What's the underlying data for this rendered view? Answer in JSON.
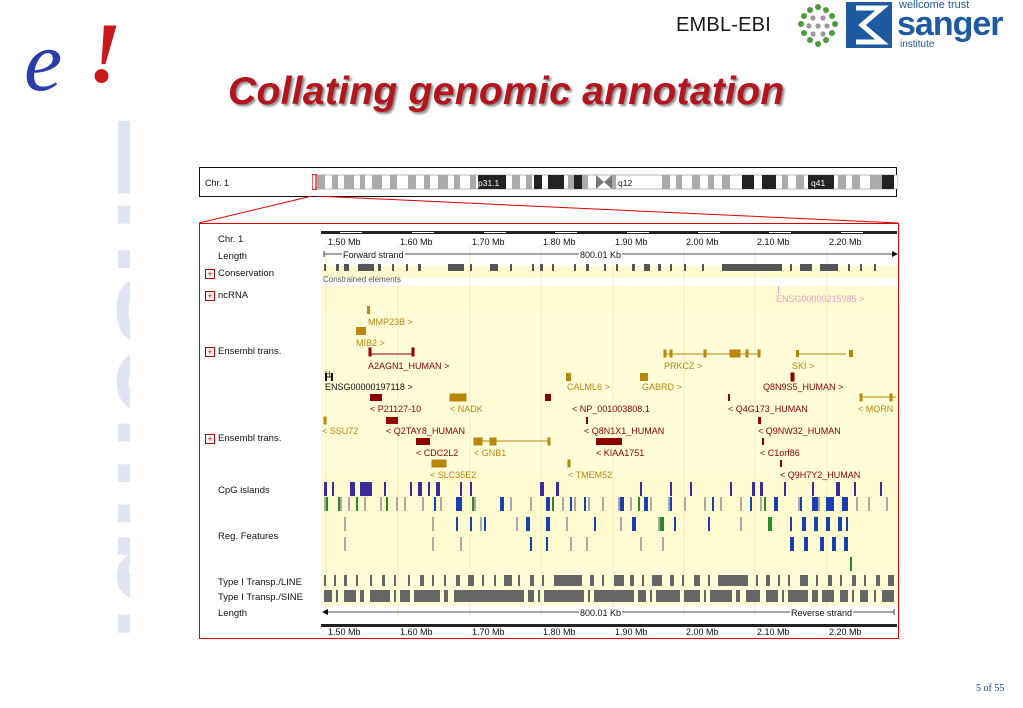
{
  "slide": {
    "title": "Collating genomic annotation",
    "page_number": "5 of 55"
  },
  "branding": {
    "ensembl_logo": "e!",
    "ensembl_word": "Ensembl",
    "embl_ebi": "EMBL-EBI",
    "sanger_top": "wellcome trust",
    "sanger_main": "sanger",
    "sanger_sub": "institute"
  },
  "chromosome_overview": {
    "label": "Chr. 1",
    "bands": [
      "p31.1",
      "q12",
      "q41"
    ]
  },
  "detail": {
    "tracks": {
      "chr": "Chr. 1",
      "length": "Length",
      "conservation": "Conservation",
      "ncrna": "ncRNA",
      "ensembl_trans_fwd": "Ensembl trans.",
      "ensembl_trans_rev": "Ensembl trans.",
      "cpg": "CpG islands",
      "reg": "Reg. Features",
      "line": "Type I Transp./LINE",
      "sine": "Type I Transp./SINE",
      "length_bottom": "Length"
    },
    "scale_ticks": [
      "1.50 Mb",
      "1.60 Mb",
      "1.70 Mb",
      "1.80 Mb",
      "1.90 Mb",
      "2.00 Mb",
      "2.10 Mb",
      "2.20 Mb"
    ],
    "forward_strand": "Forward strand",
    "reverse_strand": "Reverse strand",
    "length_value": "800.01 Kb",
    "constrained": "Constrained elements",
    "ncrna_gene": "ENSG00000215985 >",
    "genes": {
      "mmp23b": "MMP23B >",
      "mib2": "MIB2 >",
      "a2agn1": "A2AGN1_HUMAN >",
      "ensg197118": "ENSG00000197118 >",
      "prkcz": "PRKCZ >",
      "ski": "SKI >",
      "calml6": "CALML6 >",
      "gabrd": "GABRD >",
      "q8n9s5": "Q8N9S5_HUMAN >",
      "p21127": "< P21127-10",
      "nadk": "< NADK",
      "np001003808": "< NP_001003808.1",
      "q4g173": "< Q4G173_HUMAN",
      "morn": "< MORN",
      "ssu72": "< SSU72",
      "q2tay8": "< Q2TAY8_HUMAN",
      "q8n1x1": "< Q8N1X1_HUMAN",
      "q9nw32": "< Q9NW32_HUMAN",
      "cdc2l2": "< CDC2L2",
      "gnb1": "< GNB1",
      "kiaa1751": "< KIAA1751",
      "c1orf86": "< C1orf86",
      "slc35e2": "< SLC35E2",
      "tmem52": "< TMEM52",
      "q9h7y2": "< Q9H7Y2_HUMAN",
      "h_marker": "H"
    }
  },
  "colors": {
    "title_red": "#b3151f",
    "ensembl_blue": "#2a3da8",
    "ensembl_pale": "#dfe4f5",
    "dark_red": "#8b0000",
    "gold": "#b8860b",
    "track_bg": "#fffcd8"
  }
}
